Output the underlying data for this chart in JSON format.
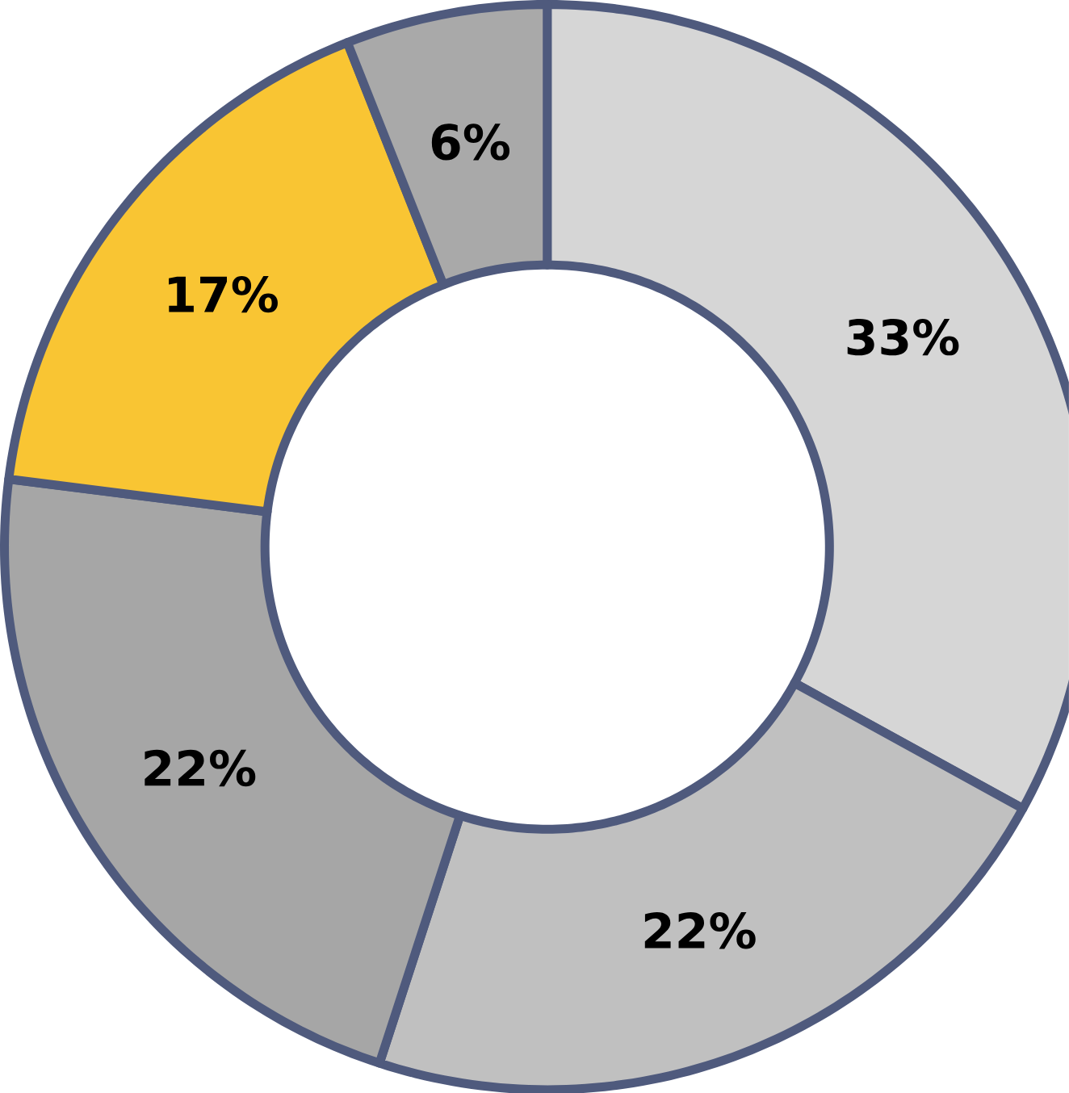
{
  "chart_data": {
    "type": "donut",
    "categories": [
      null,
      null,
      null,
      null,
      null
    ],
    "values": [
      33,
      22,
      22,
      17,
      6
    ],
    "colors": [
      "#d6d6d6",
      "#c0c0c0",
      "#a6a6a6",
      "#f9c533",
      "#a9a9a9"
    ],
    "value_labels": [
      "33%",
      "22%",
      "22%",
      "17%",
      "6%"
    ]
  }
}
